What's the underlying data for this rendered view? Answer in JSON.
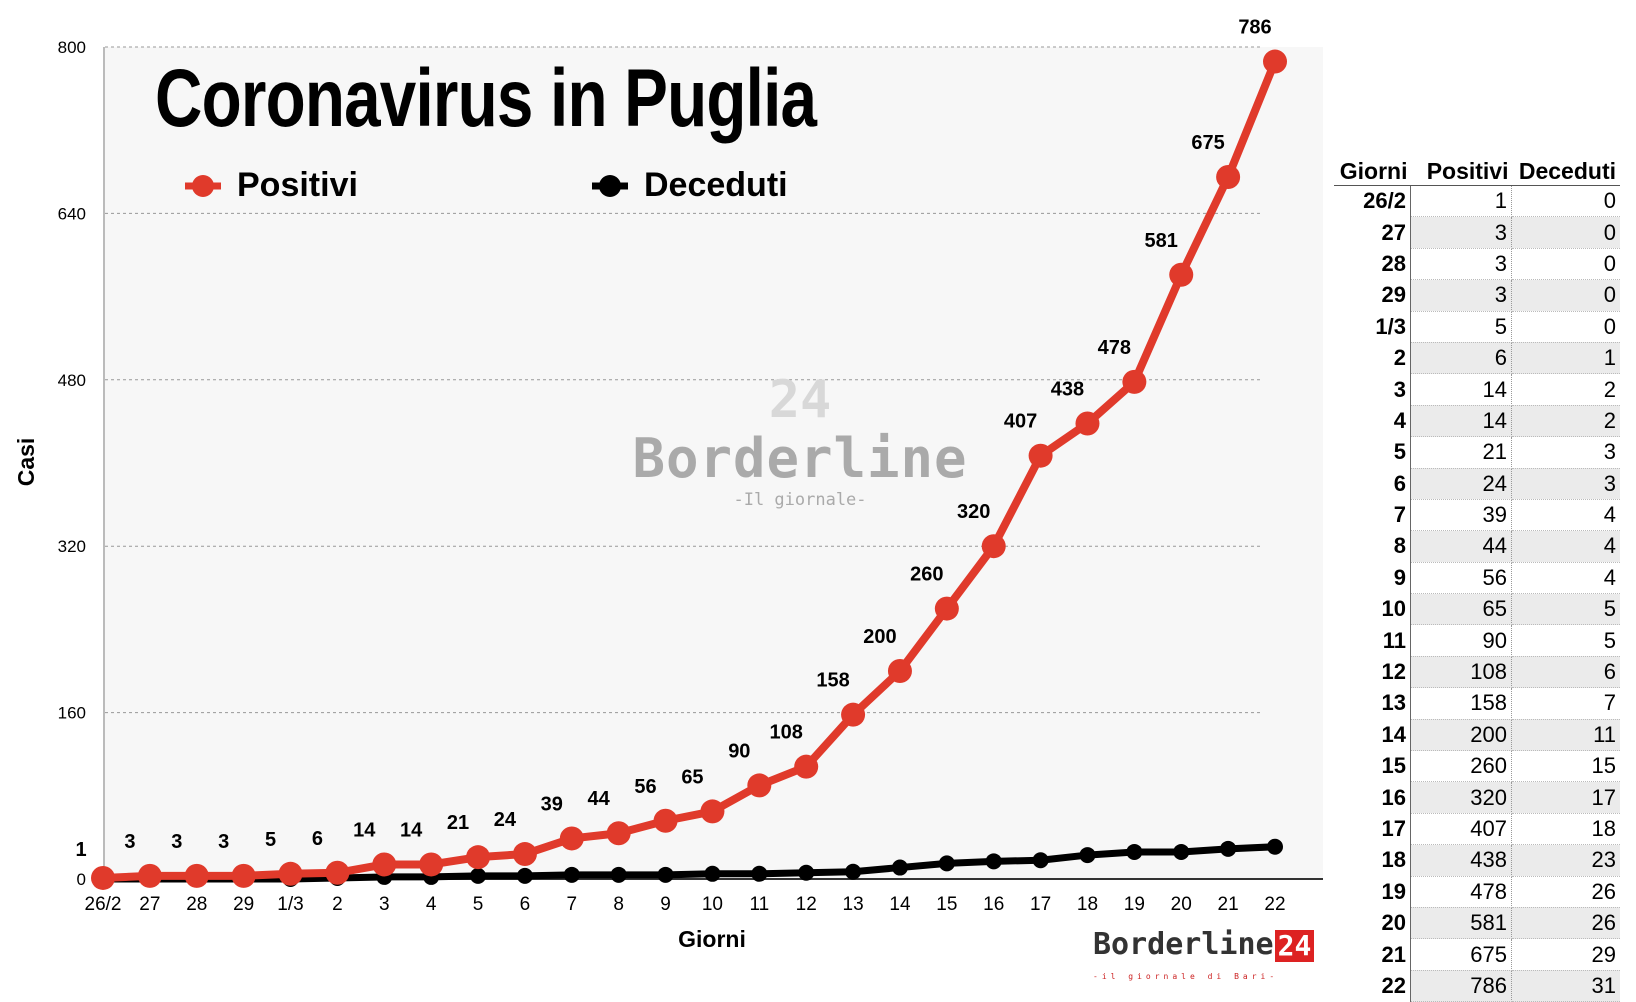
{
  "chart_data": {
    "type": "line",
    "title": "Coronavirus in Puglia",
    "xlabel": "Giorni",
    "ylabel": "Casi",
    "ylim": [
      0,
      800
    ],
    "yticks": [
      "0",
      "160",
      "320",
      "480",
      "640",
      "800"
    ],
    "grid": true,
    "legend_placement": "top-left",
    "categories": [
      "26/2",
      "27",
      "28",
      "29",
      "1/3",
      "2",
      "3",
      "4",
      "5",
      "6",
      "7",
      "8",
      "9",
      "10",
      "11",
      "12",
      "13",
      "14",
      "15",
      "16",
      "17",
      "18",
      "19",
      "20",
      "21",
      "22"
    ],
    "series": [
      {
        "name": "Positivi",
        "color": "#e03a2b",
        "values": [
          1,
          3,
          3,
          3,
          5,
          6,
          14,
          14,
          21,
          24,
          39,
          44,
          56,
          65,
          90,
          108,
          158,
          200,
          260,
          320,
          407,
          438,
          478,
          581,
          675,
          786
        ],
        "data_labels": true
      },
      {
        "name": "Deceduti",
        "color": "#000000",
        "values": [
          0,
          0,
          0,
          0,
          0,
          1,
          2,
          2,
          3,
          3,
          4,
          4,
          4,
          5,
          5,
          6,
          7,
          11,
          15,
          17,
          18,
          23,
          26,
          26,
          29,
          31
        ],
        "data_labels": false
      }
    ]
  },
  "table": {
    "headers": [
      "Giorni",
      "Positivi",
      "Deceduti"
    ]
  },
  "watermark": {
    "name": "Borderline",
    "number": "24",
    "tagline": "-Il giornale-"
  },
  "logo": {
    "name": "Borderline",
    "number": "24",
    "tagline": "-il giornale di Bari-"
  }
}
